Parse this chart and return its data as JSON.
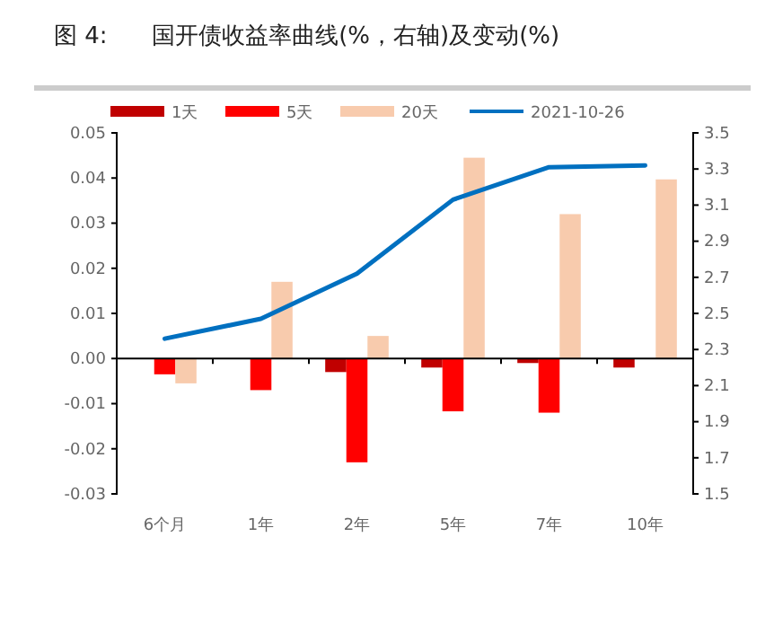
{
  "chart_data": {
    "type": "bar",
    "title": "图 4:      国开债收益率曲线(%，右轴)及变动(%)",
    "categories": [
      "6个月",
      "1年",
      "2年",
      "5年",
      "7年",
      "10年"
    ],
    "series": [
      {
        "name": "1天",
        "color": "#c00000",
        "values": [
          0,
          0,
          -0.003,
          -0.002,
          -0.001,
          -0.002
        ]
      },
      {
        "name": "5天",
        "color": "#ff0000",
        "values": [
          -0.0035,
          -0.007,
          -0.023,
          -0.0117,
          -0.012,
          0
        ]
      },
      {
        "name": "20天",
        "color": "#f8cbad",
        "values": [
          -0.0055,
          0.017,
          0.005,
          0.0445,
          0.032,
          0.0397
        ]
      },
      {
        "name": "2021-10-26",
        "color": "#0070c0",
        "type": "line",
        "axis": "y2",
        "values": [
          2.36,
          2.47,
          2.72,
          3.13,
          3.31,
          3.32
        ]
      }
    ],
    "ylim": [
      -0.03,
      0.05
    ],
    "yticks": [
      {
        "value": -0.03,
        "label": "-0.03"
      },
      {
        "value": -0.02,
        "label": "-0.02"
      },
      {
        "value": -0.01,
        "label": "-0.01"
      },
      {
        "value": 0,
        "label": "0.00"
      },
      {
        "value": 0.01,
        "label": "0.01"
      },
      {
        "value": 0.02,
        "label": "0.02"
      },
      {
        "value": 0.03,
        "label": "0.03"
      },
      {
        "value": 0.04,
        "label": "0.04"
      },
      {
        "value": 0.05,
        "label": "0.05"
      }
    ],
    "y2lim": [
      1.5,
      3.5
    ],
    "y2ticks": [
      1.5,
      1.7,
      1.9,
      2.1,
      2.3,
      2.5,
      2.7,
      2.9,
      3.1,
      3.3,
      3.5
    ],
    "legend": "top"
  }
}
